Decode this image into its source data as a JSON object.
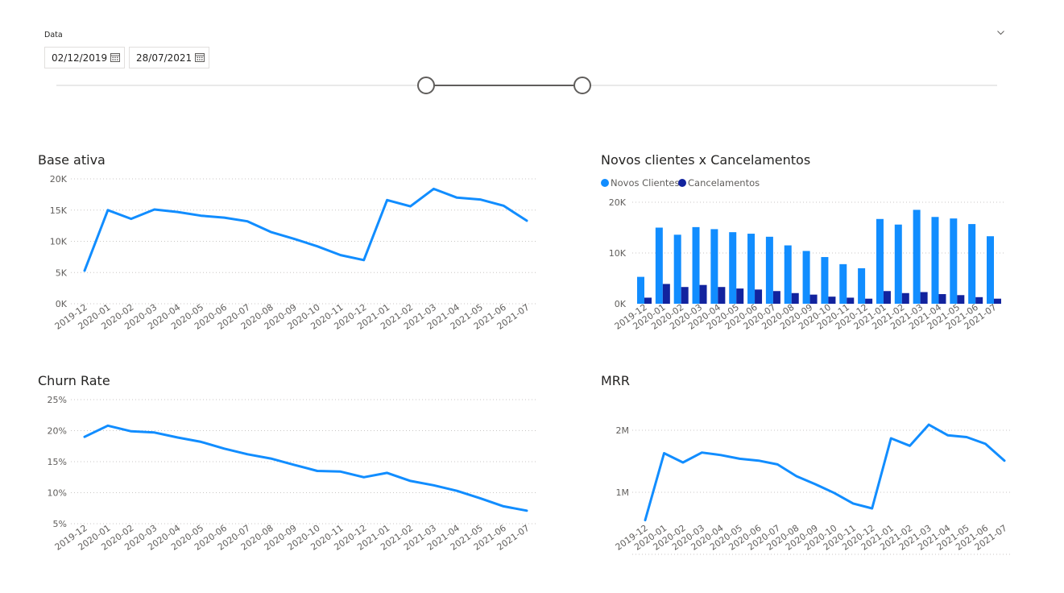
{
  "slicer": {
    "label": "Data",
    "start_date": "02/12/2019",
    "end_date": "28/07/2021",
    "calendar_icon": "calendar-icon",
    "expand_icon": "chevron-down-icon"
  },
  "colors": {
    "line": "#118DFF",
    "bar_primary": "#118DFF",
    "bar_secondary": "#12239E"
  },
  "months": [
    "2019-12",
    "2020-01",
    "2020-02",
    "2020-03",
    "2020-04",
    "2020-05",
    "2020-06",
    "2020-07",
    "2020-08",
    "2020-09",
    "2020-10",
    "2020-11",
    "2020-12",
    "2021-01",
    "2021-02",
    "2021-03",
    "2021-04",
    "2021-05",
    "2021-06",
    "2021-07"
  ],
  "chart_data": [
    {
      "id": "base",
      "type": "line",
      "title": "Base ativa",
      "y_ticks": [
        "0K",
        "5K",
        "10K",
        "15K",
        "20K"
      ],
      "ylim": [
        0,
        20000
      ],
      "series": [
        {
          "values": [
            5300,
            15000,
            13600,
            15100,
            14700,
            14100,
            13800,
            13200,
            11500,
            10400,
            9200,
            7800,
            7000,
            16600,
            15600,
            18400,
            17000,
            16700,
            15700,
            13300
          ]
        }
      ]
    },
    {
      "id": "novos",
      "type": "bar",
      "title": "Novos clientes x Cancelamentos",
      "legend_position": "top-left",
      "y_ticks": [
        "0K",
        "10K",
        "20K"
      ],
      "ylim": [
        0,
        20000
      ],
      "series": [
        {
          "name": "Novos Clientes",
          "values": [
            5300,
            15000,
            13600,
            15100,
            14700,
            14100,
            13800,
            13200,
            11500,
            10400,
            9200,
            7800,
            7000,
            16700,
            15600,
            18500,
            17100,
            16800,
            15700,
            13300
          ]
        },
        {
          "name": "Cancelamentos",
          "values": [
            1200,
            3900,
            3300,
            3700,
            3300,
            3000,
            2800,
            2500,
            2100,
            1800,
            1400,
            1200,
            1000,
            2500,
            2100,
            2300,
            1900,
            1700,
            1300,
            1000
          ]
        }
      ]
    },
    {
      "id": "churn",
      "type": "line",
      "title": "Churn Rate",
      "y_ticks": [
        "5%",
        "10%",
        "15%",
        "20%",
        "25%"
      ],
      "ylim": [
        5,
        25
      ],
      "series": [
        {
          "values": [
            19.0,
            20.8,
            19.9,
            19.7,
            18.9,
            18.2,
            17.1,
            16.2,
            15.5,
            14.5,
            13.5,
            13.4,
            12.5,
            13.2,
            11.9,
            11.2,
            10.3,
            9.1,
            7.8,
            7.1
          ]
        }
      ]
    },
    {
      "id": "mrr",
      "type": "line",
      "title": "MRR",
      "y_ticks": [
        "1M",
        "2M"
      ],
      "ylim": [
        0.4,
        2.6
      ],
      "series": [
        {
          "values": [
            0.55,
            1.63,
            1.48,
            1.64,
            1.6,
            1.54,
            1.51,
            1.45,
            1.26,
            1.13,
            0.99,
            0.82,
            0.74,
            1.87,
            1.75,
            2.09,
            1.92,
            1.89,
            1.78,
            1.51
          ]
        }
      ]
    }
  ]
}
